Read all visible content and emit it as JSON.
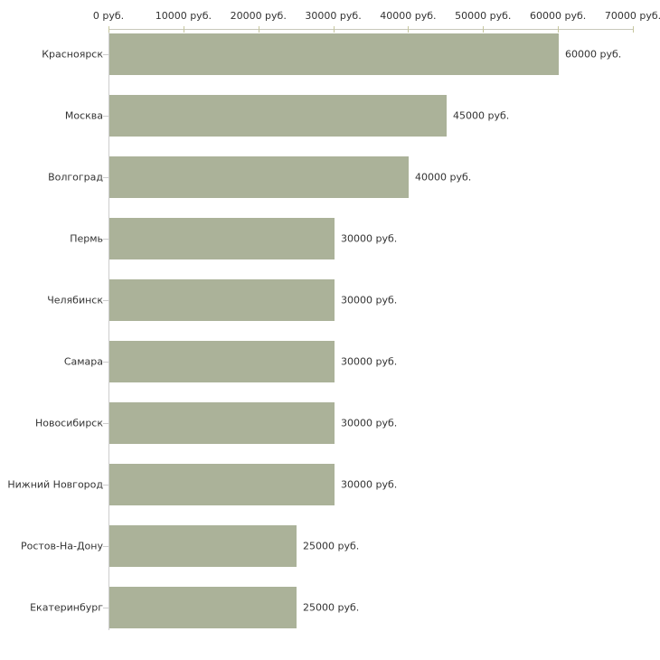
{
  "chart_data": {
    "type": "bar",
    "orientation": "horizontal",
    "title": "",
    "xlabel": "",
    "ylabel": "",
    "categories": [
      "Красноярск",
      "Москва",
      "Волгоград",
      "Пермь",
      "Челябинск",
      "Самара",
      "Новосибирск",
      "Нижний Новгород",
      "Ростов-На-Дону",
      "Екатеринбург"
    ],
    "values": [
      60000,
      45000,
      40000,
      30000,
      30000,
      30000,
      30000,
      30000,
      25000,
      25000
    ],
    "value_labels": [
      "60000 руб.",
      "45000 руб.",
      "40000 руб.",
      "30000 руб.",
      "30000 руб.",
      "30000 руб.",
      "30000 руб.",
      "30000 руб.",
      "25000 руб.",
      "25000 руб."
    ],
    "x_ticks": [
      0,
      10000,
      20000,
      30000,
      40000,
      50000,
      60000,
      70000
    ],
    "x_tick_labels": [
      "0 руб.",
      "10000 руб.",
      "20000 руб.",
      "30000 руб.",
      "40000 руб.",
      "50000 руб.",
      "60000 руб.",
      "70000 руб."
    ],
    "xlim": [
      0,
      70000
    ],
    "grid": false,
    "legend": null,
    "colors": {
      "bar_fill": "#abb299",
      "value_axis_line": "#c8c8bb",
      "value_axis_tick": "#c6c69e",
      "category_axis_line": "#cccccc",
      "category_axis_tick": "#cccccc",
      "text": "#333333",
      "background": "#ffffff"
    }
  }
}
